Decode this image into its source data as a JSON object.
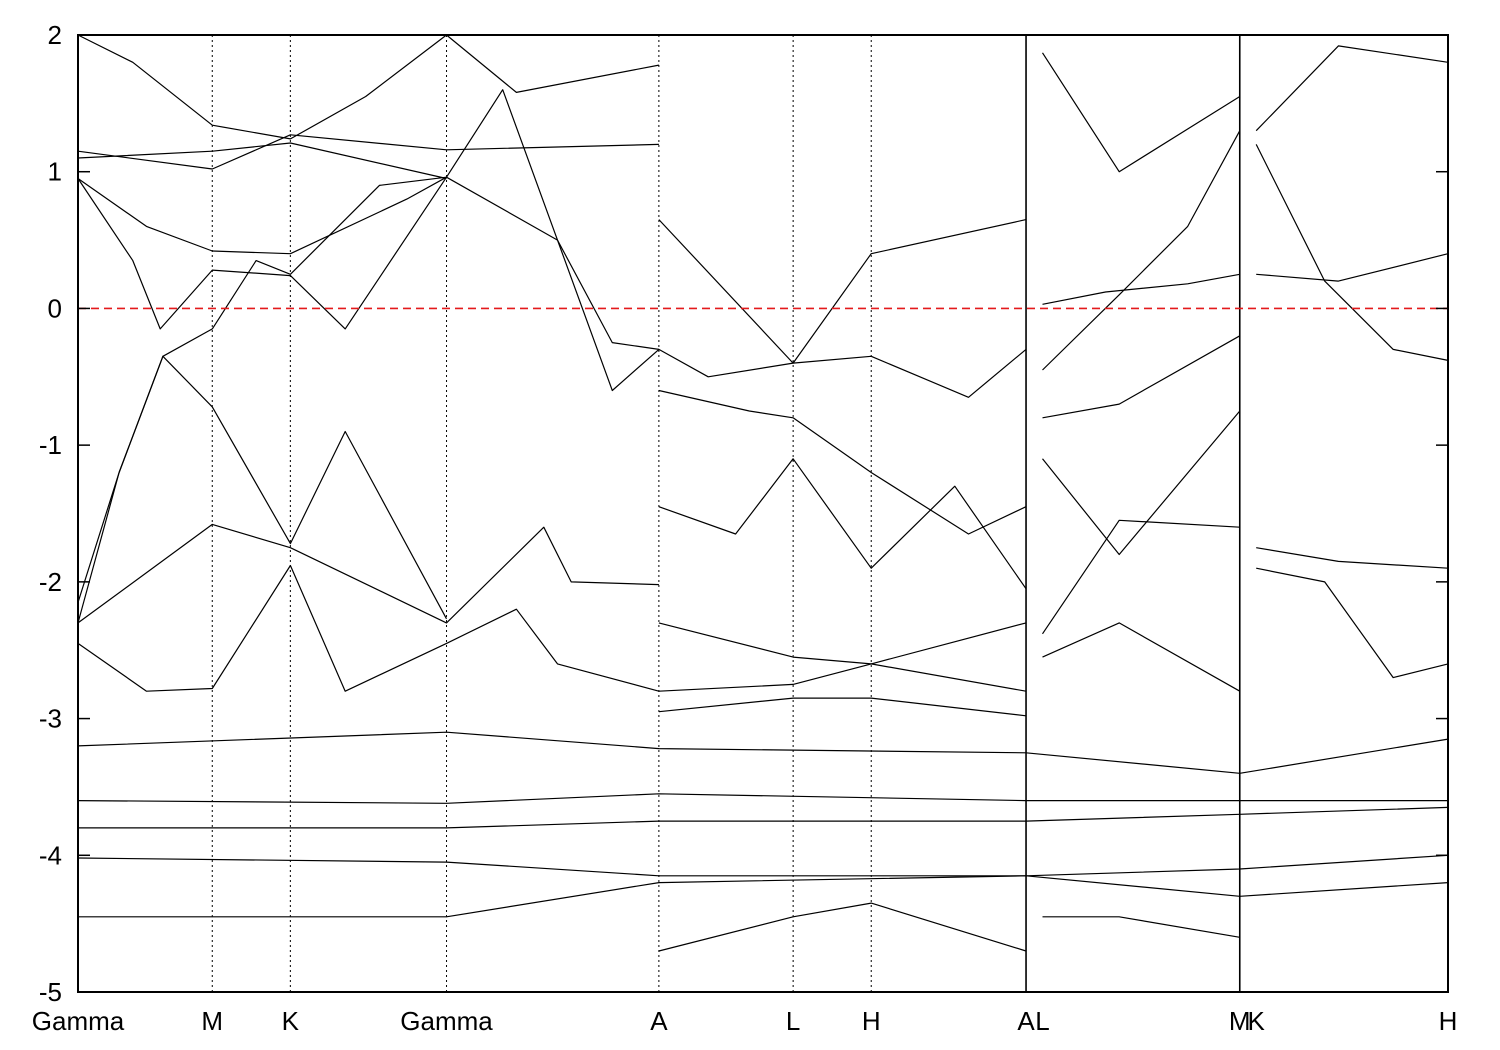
{
  "chart_data": {
    "type": "line",
    "title": "",
    "xlabel": "",
    "ylabel": "",
    "ylim": [
      -5,
      2
    ],
    "yticks": [
      "2",
      "1",
      "0",
      "-1",
      "-2",
      "-3",
      "-4",
      "-5"
    ],
    "ytick_values": [
      2,
      1,
      0,
      -1,
      -2,
      -3,
      -4,
      -5
    ],
    "xlim": [
      0,
      10
    ],
    "kpoint_positions": [
      0,
      0.98,
      1.55,
      2.69,
      4.24,
      5.22,
      5.79,
      6.92,
      8.48,
      10
    ],
    "kpoint_labels": [
      "Gamma",
      "M",
      "K",
      "Gamma",
      "A",
      "L",
      "H",
      "A",
      "L",
      "M",
      "K",
      "H"
    ],
    "kpoint_label_positions": [
      0,
      0.98,
      1.55,
      2.69,
      4.24,
      5.22,
      5.79,
      6.92,
      7.04,
      8.48,
      8.6,
      10
    ],
    "segment_breaks": [
      6.92,
      8.48
    ],
    "fermi_level": 0,
    "fermi_line_color": "#e41a1c",
    "band_color": "#000000",
    "series": [
      {
        "x": [
          0,
          0.4,
          0.98,
          1.55,
          2.1,
          2.69,
          3.2,
          4.24
        ],
        "y": [
          2.0,
          1.8,
          1.34,
          1.24,
          1.55,
          2.0,
          1.58,
          1.78
        ]
      },
      {
        "x": [
          0,
          0.98,
          1.55,
          2.69,
          4.24
        ],
        "y": [
          1.15,
          1.02,
          1.27,
          1.16,
          1.2
        ]
      },
      {
        "x": [
          0,
          0.98,
          1.55,
          2.69
        ],
        "y": [
          1.1,
          1.15,
          1.21,
          0.95
        ]
      },
      {
        "x": [
          0,
          0.5,
          0.98,
          1.55,
          2.4,
          2.69
        ],
        "y": [
          0.95,
          0.6,
          0.42,
          0.4,
          0.8,
          0.96
        ]
      },
      {
        "x": [
          0,
          0.4,
          0.6,
          0.98,
          1.55,
          1.95,
          2.69,
          3.5,
          3.9,
          4.24
        ],
        "y": [
          0.95,
          0.35,
          -0.15,
          0.28,
          0.24,
          -0.15,
          0.96,
          0.5,
          -0.25,
          -0.3
        ]
      },
      {
        "x": [
          0,
          0.3,
          0.62,
          0.98,
          1.3,
          1.55,
          2.2,
          2.69
        ],
        "y": [
          -2.3,
          -1.2,
          -0.35,
          -0.15,
          0.35,
          0.25,
          0.9,
          0.96
        ]
      },
      {
        "x": [
          0,
          0.3,
          0.62,
          0.98,
          1.55,
          1.95,
          2.69
        ],
        "y": [
          -2.15,
          -1.2,
          -0.35,
          -0.72,
          -1.72,
          -0.9,
          -2.27
        ]
      },
      {
        "x": [
          0,
          0.98,
          1.55,
          2.69,
          3.4,
          3.6,
          4.24
        ],
        "y": [
          -2.3,
          -1.58,
          -1.75,
          -2.3,
          -1.6,
          -2.0,
          -2.02
        ]
      },
      {
        "x": [
          0,
          0.5,
          0.98,
          1.55,
          1.95,
          2.69,
          3.2,
          3.5,
          4.24
        ],
        "y": [
          -2.45,
          -2.8,
          -2.78,
          -1.88,
          -2.8,
          -2.45,
          -2.2,
          -2.6,
          -2.8
        ]
      },
      {
        "x": [
          2.69,
          3.1,
          3.9,
          4.24,
          4.6,
          5.22,
          5.79,
          6.5,
          6.92
        ],
        "y": [
          0.96,
          1.6,
          -0.6,
          -0.3,
          -0.5,
          -0.4,
          -0.35,
          -0.65,
          -0.3
        ]
      },
      {
        "x": [
          4.24,
          5.22,
          5.79,
          6.92
        ],
        "y": [
          0.65,
          -0.4,
          0.4,
          0.65
        ]
      },
      {
        "x": [
          4.24,
          4.9,
          5.22,
          5.79,
          6.5,
          6.92
        ],
        "y": [
          -0.6,
          -0.75,
          -0.8,
          -1.2,
          -1.65,
          -1.45
        ]
      },
      {
        "x": [
          4.24,
          4.8,
          5.22,
          5.79,
          6.4,
          6.92
        ],
        "y": [
          -1.45,
          -1.65,
          -1.1,
          -1.9,
          -1.3,
          -2.05
        ]
      },
      {
        "x": [
          4.24,
          5.22,
          5.79,
          6.92
        ],
        "y": [
          -2.3,
          -2.55,
          -2.6,
          -2.3
        ]
      },
      {
        "x": [
          4.24,
          5.22,
          5.79,
          6.92
        ],
        "y": [
          -2.8,
          -2.75,
          -2.6,
          -2.8
        ]
      },
      {
        "x": [
          4.24,
          5.22,
          5.79,
          6.92
        ],
        "y": [
          -2.95,
          -2.85,
          -2.85,
          -2.98
        ]
      },
      {
        "x": [
          4.24,
          5.22,
          5.79,
          6.92
        ],
        "y": [
          -4.7,
          -4.45,
          -4.35,
          -4.7
        ]
      },
      {
        "x": [
          7.04,
          7.5,
          8.1,
          8.48
        ],
        "y": [
          0.03,
          0.12,
          0.18,
          0.25
        ]
      },
      {
        "x": [
          7.04,
          7.6,
          8.1,
          8.48
        ],
        "y": [
          -0.45,
          0.1,
          0.6,
          1.3
        ]
      },
      {
        "x": [
          7.04,
          7.6,
          8.48
        ],
        "y": [
          -0.8,
          -0.7,
          -0.2
        ]
      },
      {
        "x": [
          7.04,
          7.6,
          8.48
        ],
        "y": [
          -1.1,
          -1.8,
          -0.75
        ]
      },
      {
        "x": [
          7.04,
          7.6,
          8.48
        ],
        "y": [
          -2.38,
          -1.55,
          -1.6
        ]
      },
      {
        "x": [
          7.04,
          7.6,
          8.48
        ],
        "y": [
          -2.55,
          -2.3,
          -2.8
        ]
      },
      {
        "x": [
          7.04,
          7.6,
          8.48
        ],
        "y": [
          -4.45,
          -4.45,
          -4.6
        ]
      },
      {
        "x": [
          7.04,
          7.6,
          8.48
        ],
        "y": [
          1.87,
          1.0,
          1.55
        ]
      },
      {
        "x": [
          8.6,
          9.1,
          9.6,
          10
        ],
        "y": [
          1.2,
          0.2,
          -0.3,
          -0.38
        ]
      },
      {
        "x": [
          8.6,
          9.2,
          10
        ],
        "y": [
          0.25,
          0.2,
          0.4
        ]
      },
      {
        "x": [
          8.6,
          9.2,
          10
        ],
        "y": [
          -1.75,
          -1.85,
          -1.9
        ]
      },
      {
        "x": [
          8.6,
          9.1,
          9.6,
          10
        ],
        "y": [
          -1.9,
          -2.0,
          -2.7,
          -2.6
        ]
      },
      {
        "x": [
          8.6,
          9.2,
          10
        ],
        "y": [
          1.3,
          1.92,
          1.8
        ]
      },
      {
        "x": [
          0,
          2.69,
          4.24,
          6.92,
          8.48,
          10
        ],
        "y": [
          -3.2,
          -3.1,
          -3.22,
          -3.25,
          -3.4,
          -3.15
        ]
      },
      {
        "x": [
          0,
          2.69,
          4.24,
          6.92,
          8.48,
          10
        ],
        "y": [
          -3.6,
          -3.62,
          -3.55,
          -3.6,
          -3.6,
          -3.6
        ]
      },
      {
        "x": [
          0,
          2.69,
          4.24,
          6.92,
          8.48,
          10
        ],
        "y": [
          -3.8,
          -3.8,
          -3.75,
          -3.75,
          -3.7,
          -3.65
        ]
      },
      {
        "x": [
          0,
          2.69,
          4.24,
          6.92,
          8.48,
          10
        ],
        "y": [
          -4.02,
          -4.05,
          -4.15,
          -4.15,
          -4.1,
          -4.0
        ]
      },
      {
        "x": [
          0,
          2.69,
          4.24,
          6.92,
          8.48,
          10
        ],
        "y": [
          -4.45,
          -4.45,
          -4.2,
          -4.15,
          -4.3,
          -4.2
        ]
      }
    ]
  }
}
